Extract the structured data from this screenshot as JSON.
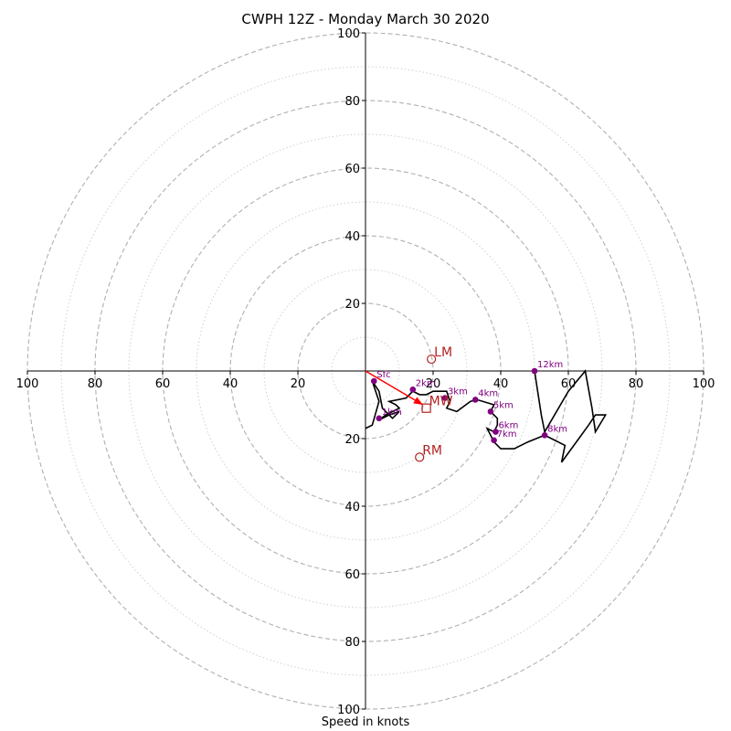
{
  "chart_data": {
    "type": "scatter",
    "title": "CWPH 12Z - Monday March 30 2020",
    "xlabel": "Speed in knots",
    "ylabel": "",
    "xlim": [
      -100,
      100
    ],
    "ylim": [
      -100,
      100
    ],
    "grid": true,
    "x_tick_labels": [
      "100",
      "80",
      "60",
      "40",
      "20",
      "20",
      "40",
      "60",
      "80",
      "100"
    ],
    "y_tick_labels": [
      "100",
      "80",
      "60",
      "40",
      "20",
      "20",
      "40",
      "60",
      "80",
      "100"
    ],
    "tick_values": [
      -100,
      -80,
      -60,
      -40,
      -20,
      20,
      40,
      60,
      80,
      100
    ],
    "colors": {
      "trace": "#000000",
      "height_points": "#800080",
      "storm_motion": "#b22222",
      "shear_arrow": "#ff0000",
      "grid_major": "#b0b0b0",
      "grid_minor": "#d0d0d0"
    },
    "hodograph_trace": [
      [
        0,
        -17
      ],
      [
        2,
        -16
      ],
      [
        4,
        -9
      ],
      [
        2,
        -3
      ],
      [
        4,
        -6
      ],
      [
        5,
        -11
      ],
      [
        8,
        -14
      ],
      [
        10,
        -12
      ],
      [
        7,
        -13
      ],
      [
        4,
        -14.5
      ],
      [
        6,
        -13
      ],
      [
        10,
        -11
      ],
      [
        9,
        -10
      ],
      [
        7,
        -9
      ],
      [
        12,
        -8
      ],
      [
        14,
        -6
      ],
      [
        16,
        -7
      ],
      [
        18,
        -7
      ],
      [
        20,
        -6
      ],
      [
        24,
        -6
      ],
      [
        25,
        -9
      ],
      [
        24,
        -11
      ],
      [
        27,
        -12
      ],
      [
        31,
        -9
      ],
      [
        33,
        -8.5
      ],
      [
        38,
        -10
      ],
      [
        37,
        -12
      ],
      [
        39,
        -14
      ],
      [
        39,
        -16
      ],
      [
        38,
        -18
      ],
      [
        36,
        -17
      ],
      [
        37,
        -19
      ],
      [
        38,
        -21
      ],
      [
        40,
        -23
      ],
      [
        44,
        -23
      ],
      [
        48,
        -21
      ],
      [
        53,
        -19
      ],
      [
        59,
        -22
      ],
      [
        58,
        -27
      ],
      [
        66,
        -16
      ],
      [
        68,
        -13
      ],
      [
        71,
        -13
      ],
      [
        68,
        -18
      ],
      [
        67,
        -11
      ],
      [
        65,
        0
      ],
      [
        60,
        -6
      ],
      [
        53,
        -18
      ],
      [
        52,
        -13
      ],
      [
        50,
        0
      ]
    ],
    "height_points": [
      {
        "label": "Sfc",
        "x": 2.5,
        "y": -3
      },
      {
        "label": "1km",
        "x": 4,
        "y": -14
      },
      {
        "label": "2km",
        "x": 14,
        "y": -5.5
      },
      {
        "label": "3km",
        "x": 23.5,
        "y": -8
      },
      {
        "label": "4km",
        "x": 32.5,
        "y": -8.5
      },
      {
        "label": "5km",
        "x": 37,
        "y": -12
      },
      {
        "label": "6km",
        "x": 38.5,
        "y": -18
      },
      {
        "label": "7km",
        "x": 38,
        "y": -20.5
      },
      {
        "label": "8km",
        "x": 53,
        "y": -19
      },
      {
        "label": "12km",
        "x": 50,
        "y": 0
      }
    ],
    "storm_motion": [
      {
        "label": "LM",
        "x": 19.5,
        "y": 3.5,
        "marker": "circle"
      },
      {
        "label": "MW",
        "x": 18,
        "y": -11,
        "marker": "square"
      },
      {
        "label": "RM",
        "x": 16,
        "y": -25.5,
        "marker": "circle"
      }
    ],
    "shear_vector": {
      "from": [
        0,
        0
      ],
      "to": [
        17,
        -10
      ]
    }
  }
}
